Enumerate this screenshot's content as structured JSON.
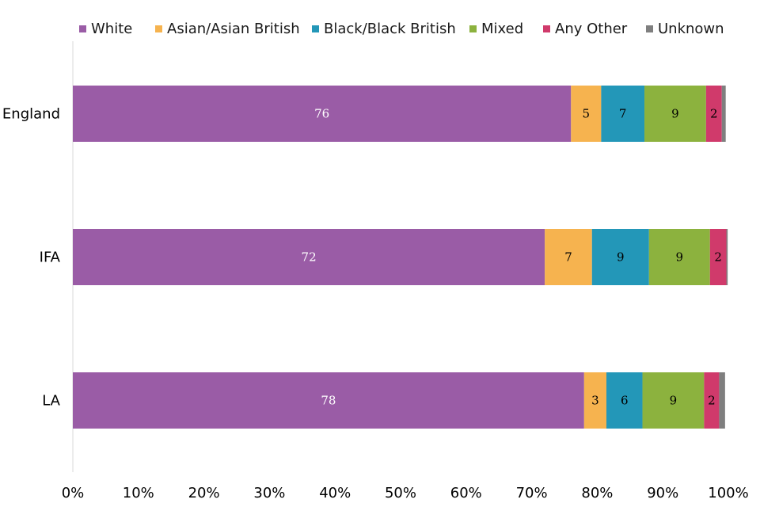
{
  "chart_data": {
    "type": "bar",
    "orientation": "horizontal",
    "stacked": true,
    "percent_stacked": true,
    "categories": [
      "England",
      "IFA",
      "LA"
    ],
    "series": [
      {
        "name": "White",
        "color": "#9a5ca6",
        "values": [
          76,
          72,
          78
        ],
        "labels": [
          "76",
          "72",
          "78"
        ],
        "label_color": "#ffffff"
      },
      {
        "name": "Asian/Asian British",
        "color": "#f6b34f",
        "values": [
          4.6,
          7.2,
          3.4
        ],
        "labels": [
          "5",
          "7",
          "3"
        ],
        "label_color": "#000000"
      },
      {
        "name": "Black/Black British",
        "color": "#2397b8",
        "values": [
          6.6,
          8.7,
          5.5
        ],
        "labels": [
          "7",
          "9",
          "6"
        ],
        "label_color": "#000000"
      },
      {
        "name": "Mixed",
        "color": "#8cb23e",
        "values": [
          9.4,
          9.3,
          9.4
        ],
        "labels": [
          "9",
          "9",
          "9"
        ],
        "label_color": "#000000"
      },
      {
        "name": "Any Other",
        "color": "#d03a6b",
        "values": [
          2.4,
          2.5,
          2.3
        ],
        "labels": [
          "2",
          "2",
          "2"
        ],
        "label_color": "#000000"
      },
      {
        "name": "Unknown",
        "color": "#7f7f7f",
        "values": [
          0.6,
          0.2,
          0.9
        ],
        "labels": [
          "",
          "",
          ""
        ],
        "label_color": "#000000"
      }
    ],
    "x_ticks": [
      "0%",
      "10%",
      "20%",
      "30%",
      "40%",
      "50%",
      "60%",
      "70%",
      "80%",
      "90%",
      "100%"
    ],
    "xlim": [
      0,
      100
    ],
    "grid": false,
    "legend_position": "top"
  }
}
